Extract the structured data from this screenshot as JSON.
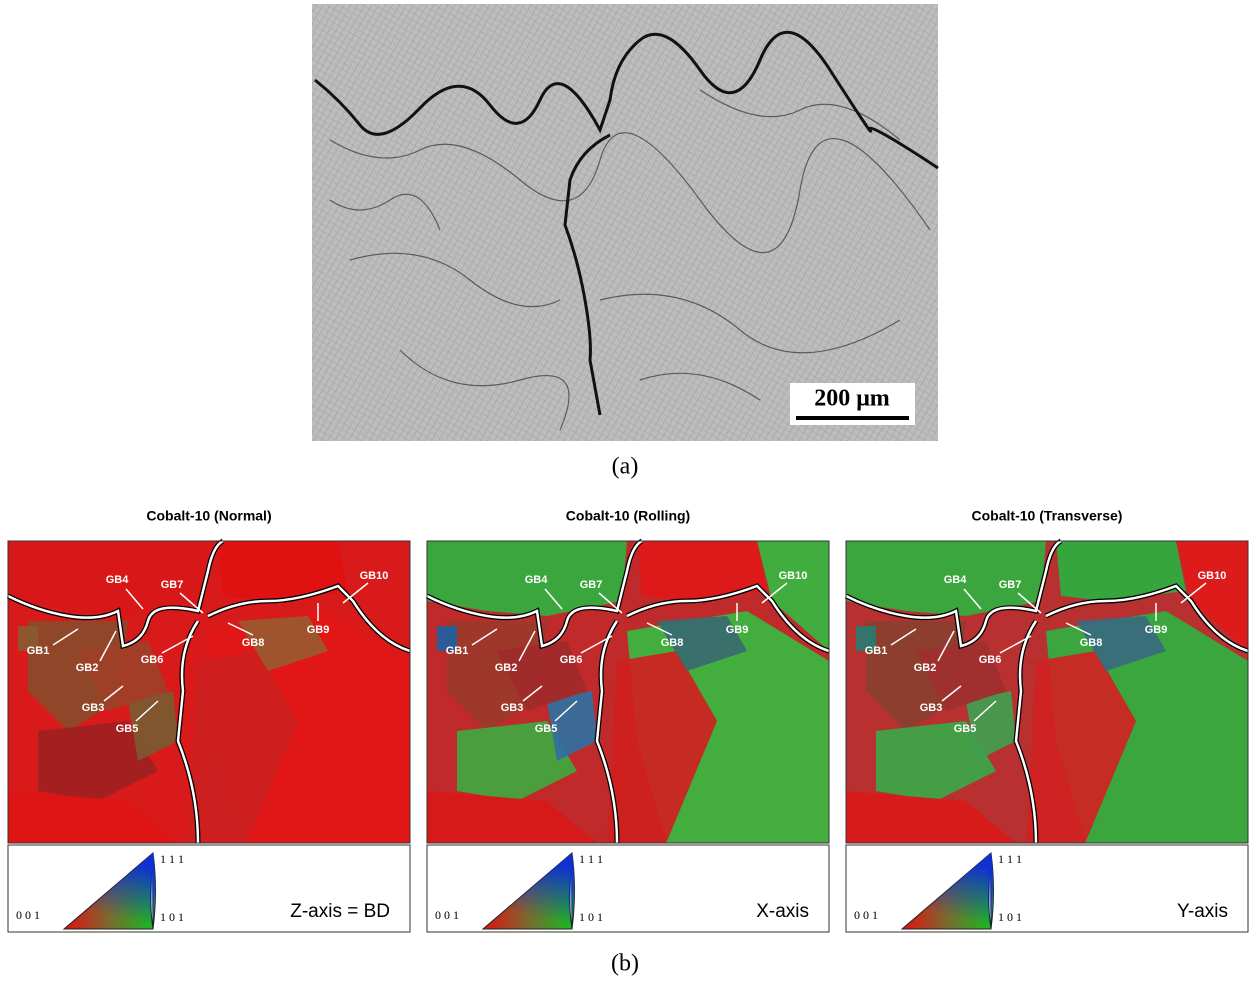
{
  "panel_a": {
    "scale_bar": "200 μm",
    "label": "(a)"
  },
  "panel_b": {
    "label": "(b)",
    "maps": [
      {
        "title": "Cobalt-10 (Normal)",
        "axis_label": "Z-axis = BD"
      },
      {
        "title": "Cobalt-10 (Rolling)",
        "axis_label": "X-axis"
      },
      {
        "title": "Cobalt-10 (Transverse)",
        "axis_label": "Y-axis"
      }
    ],
    "gb_labels": [
      "GB1",
      "GB2",
      "GB3",
      "GB4",
      "GB5",
      "GB6",
      "GB7",
      "GB8",
      "GB9",
      "GB10"
    ],
    "legend": {
      "corner_001": "0 0 1",
      "corner_111": "1 1 1",
      "corner_101": "1 0 1"
    }
  }
}
